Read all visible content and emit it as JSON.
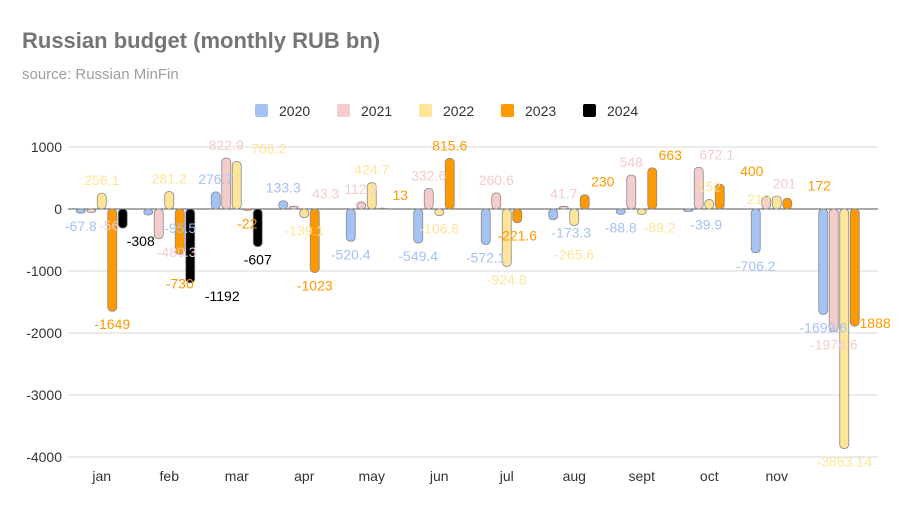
{
  "chart_data": {
    "type": "bar",
    "title": "Russian budget (monthly RUB bn)",
    "subtitle": "source: Russian MinFin",
    "xlabel": "",
    "ylabel": "",
    "ylim": [
      -4000,
      1000
    ],
    "yticks": [
      1000,
      0,
      -1000,
      -2000,
      -3000,
      -4000
    ],
    "grid": true,
    "legend_position": "top",
    "categories": [
      "jan",
      "feb",
      "mar",
      "apr",
      "may",
      "jun",
      "jul",
      "aug",
      "sept",
      "oct",
      "nov",
      ""
    ],
    "series": [
      {
        "name": "2020",
        "color": "#a4c2f4",
        "values": [
          -67.8,
          -95.5,
          276.7,
          133.3,
          -520.4,
          -549.4,
          -572.1,
          -173.3,
          -88.8,
          -39.9,
          -706.2,
          -1699.6
        ]
      },
      {
        "name": "2021",
        "color": "#f4cccc",
        "values": [
          -56,
          -480.3,
          822.9,
          43.3,
          112.2,
          332.6,
          260.6,
          41.7,
          548,
          672.1,
          201,
          -1974.6
        ]
      },
      {
        "name": "2022",
        "color": "#ffe599",
        "values": [
          256.1,
          281.2,
          766.2,
          -139.1,
          424.7,
          -106.8,
          -924.8,
          -265.6,
          -89.2,
          152,
          210,
          -3863.14
        ]
      },
      {
        "name": "2023",
        "color": "#ff9900",
        "values": [
          -1649,
          -730,
          -22,
          -1023,
          13,
          815.6,
          -221.6,
          230,
          663,
          400,
          172,
          -1888
        ]
      },
      {
        "name": "2024",
        "color": "#000000",
        "values": [
          -308,
          -1192,
          -607,
          null,
          null,
          null,
          null,
          null,
          null,
          null,
          null,
          null
        ]
      }
    ]
  }
}
